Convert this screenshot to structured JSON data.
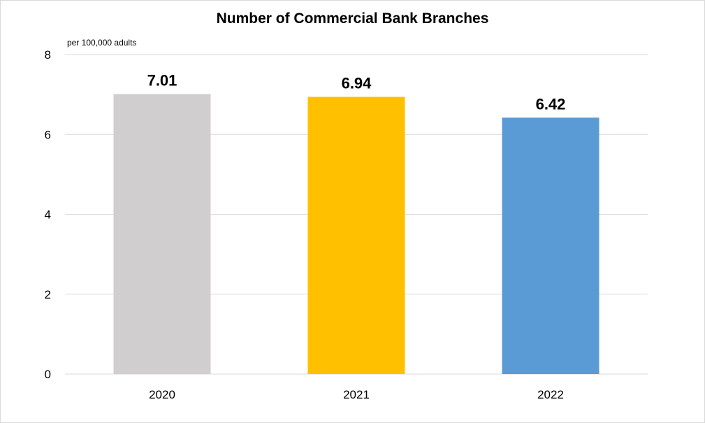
{
  "chart_data": {
    "type": "bar",
    "title": "Number of Commercial Bank Branches",
    "y_unit_label": "per 100,000  adults",
    "categories": [
      "2020",
      "2021",
      "2022"
    ],
    "values": [
      7.01,
      6.94,
      6.42
    ],
    "data_labels": [
      "7.01",
      "6.94",
      "6.42"
    ],
    "bar_colors": [
      "#d0cece",
      "#ffc000",
      "#5b9bd5"
    ],
    "ylim": [
      0,
      8
    ],
    "yticks": [
      0,
      2,
      4,
      6,
      8
    ],
    "grid": true,
    "legend": "none"
  }
}
